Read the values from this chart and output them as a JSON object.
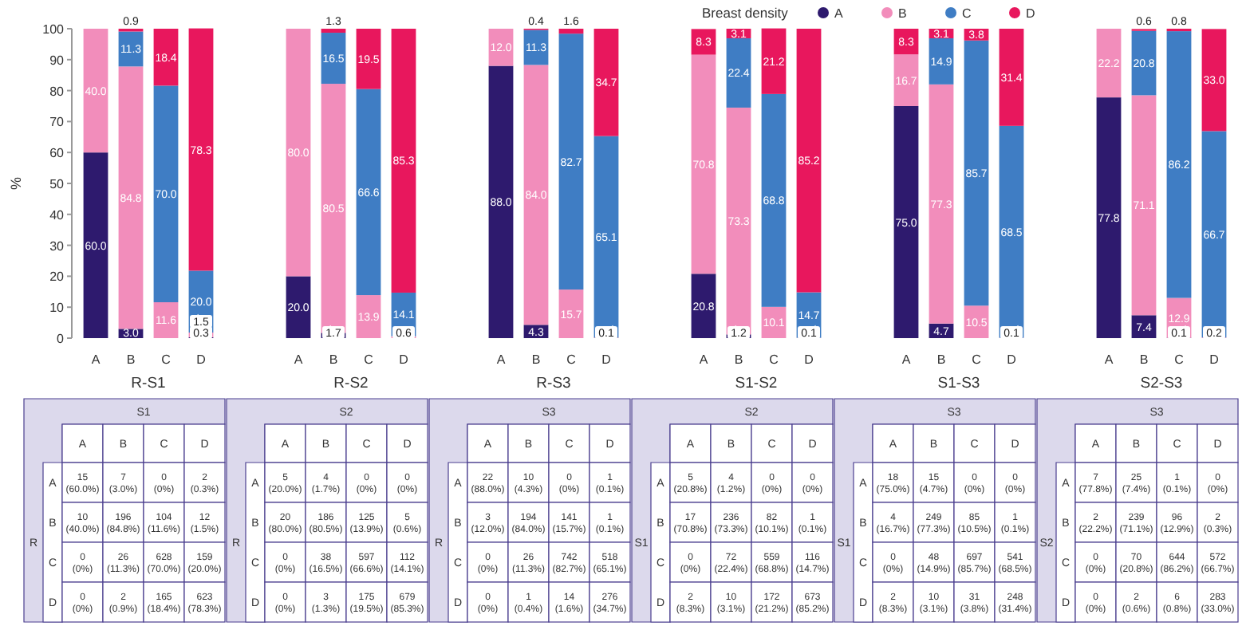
{
  "chart_data": [
    {
      "type": "bar",
      "stacked": true,
      "xlabel": "R-S1",
      "ylabel": "%",
      "legend": "top",
      "legend_title": "Breast density",
      "categories": [
        "A",
        "B",
        "C",
        "D"
      ],
      "ylim": [
        0,
        100
      ],
      "yticks": [
        0,
        10,
        20,
        30,
        40,
        50,
        60,
        70,
        80,
        90,
        100
      ],
      "series": [
        {
          "name": "A",
          "color": "#2e1a6e",
          "values": [
            60.0,
            3.0,
            0,
            0.3
          ],
          "value_labels": [
            "60.0",
            "3.0",
            null,
            "0.3"
          ]
        },
        {
          "name": "B",
          "color": "#f28dbb",
          "values": [
            40.0,
            84.8,
            11.6,
            1.5
          ],
          "value_labels": [
            "40.0",
            "84.8",
            "11.6",
            "1.5"
          ]
        },
        {
          "name": "C",
          "color": "#3f7dc4",
          "values": [
            0,
            11.3,
            70.0,
            20.0
          ],
          "value_labels": [
            null,
            "11.3",
            "70.0",
            "20.0"
          ]
        },
        {
          "name": "D",
          "color": "#e8175d",
          "values": [
            0,
            0.9,
            18.4,
            78.3
          ],
          "value_labels": [
            null,
            "0.9",
            "18.4",
            "78.3"
          ]
        }
      ]
    },
    {
      "type": "bar",
      "stacked": true,
      "xlabel": "R-S2",
      "tick_labels": "x",
      "categories": [
        "A",
        "B",
        "C",
        "D"
      ],
      "ylim": [
        0,
        100
      ],
      "series": [
        {
          "color": "#2e1a6e",
          "values": [
            20.0,
            1.7,
            0,
            0
          ],
          "value_labels": [
            "20.0",
            "1.7",
            null,
            null
          ]
        },
        {
          "color": "#f28dbb",
          "values": [
            80.0,
            80.5,
            13.9,
            0.6
          ],
          "value_labels": [
            "80.0",
            "80.5",
            "13.9",
            "0.6"
          ]
        },
        {
          "color": "#3f7dc4",
          "values": [
            0,
            16.5,
            66.6,
            14.1
          ],
          "value_labels": [
            null,
            "16.5",
            "66.6",
            "14.1"
          ]
        },
        {
          "color": "#e8175d",
          "values": [
            0,
            1.3,
            19.5,
            85.3
          ],
          "value_labels": [
            null,
            "1.3",
            "19.5",
            "85.3"
          ]
        }
      ]
    },
    {
      "type": "bar",
      "stacked": true,
      "xlabel": "R-S3",
      "tick_labels": "x",
      "categories": [
        "A",
        "B",
        "C",
        "D"
      ],
      "ylim": [
        0,
        100
      ],
      "series": [
        {
          "color": "#2e1a6e",
          "values": [
            88.0,
            4.3,
            0,
            0.1
          ],
          "value_labels": [
            "88.0",
            "4.3",
            null,
            "0.1"
          ]
        },
        {
          "color": "#f28dbb",
          "values": [
            12.0,
            84.0,
            15.7,
            0.1
          ],
          "value_labels": [
            "12.0",
            "84.0",
            "15.7",
            null
          ]
        },
        {
          "color": "#3f7dc4",
          "values": [
            0,
            11.3,
            82.7,
            65.1
          ],
          "value_labels": [
            null,
            "11.3",
            "82.7",
            "65.1"
          ]
        },
        {
          "color": "#e8175d",
          "values": [
            0,
            0.4,
            1.6,
            34.7
          ],
          "value_labels": [
            null,
            "0.4",
            "1.6",
            "34.7"
          ]
        }
      ]
    },
    {
      "type": "bar",
      "stacked": true,
      "xlabel": "S1-S2",
      "tick_labels": "x",
      "categories": [
        "A",
        "B",
        "C",
        "D"
      ],
      "ylim": [
        0,
        100
      ],
      "series": [
        {
          "color": "#2e1a6e",
          "values": [
            20.8,
            1.2,
            0,
            0
          ],
          "value_labels": [
            "20.8",
            "1.2",
            null,
            null
          ]
        },
        {
          "color": "#f28dbb",
          "values": [
            70.8,
            73.3,
            10.1,
            0.1
          ],
          "value_labels": [
            "70.8",
            "73.3",
            "10.1",
            "0.1"
          ]
        },
        {
          "color": "#3f7dc4",
          "values": [
            0,
            22.4,
            68.8,
            14.7
          ],
          "value_labels": [
            null,
            "22.4",
            "68.8",
            "14.7"
          ]
        },
        {
          "color": "#e8175d",
          "values": [
            8.3,
            3.1,
            21.2,
            85.2
          ],
          "value_labels": [
            "8.3",
            "3.1",
            "21.2",
            "85.2"
          ]
        }
      ]
    },
    {
      "type": "bar",
      "stacked": true,
      "xlabel": "S1-S3",
      "tick_labels": "x",
      "categories": [
        "A",
        "B",
        "C",
        "D"
      ],
      "ylim": [
        0,
        100
      ],
      "series": [
        {
          "color": "#2e1a6e",
          "values": [
            75.0,
            4.7,
            0,
            0
          ],
          "value_labels": [
            "75.0",
            "4.7",
            null,
            null
          ]
        },
        {
          "color": "#f28dbb",
          "values": [
            16.7,
            77.3,
            10.5,
            0.1
          ],
          "value_labels": [
            "16.7",
            "77.3",
            "10.5",
            "0.1"
          ]
        },
        {
          "color": "#3f7dc4",
          "values": [
            0,
            14.9,
            85.7,
            68.5
          ],
          "value_labels": [
            null,
            "14.9",
            "85.7",
            "68.5"
          ]
        },
        {
          "color": "#e8175d",
          "values": [
            8.3,
            3.1,
            3.8,
            31.4
          ],
          "value_labels": [
            "8.3",
            "3.1",
            "3.8",
            "31.4"
          ]
        }
      ]
    },
    {
      "type": "bar",
      "stacked": true,
      "xlabel": "S2-S3",
      "tick_labels": "x",
      "categories": [
        "A",
        "B",
        "C",
        "D"
      ],
      "ylim": [
        0,
        100
      ],
      "series": [
        {
          "color": "#2e1a6e",
          "values": [
            77.8,
            7.4,
            0.1,
            0
          ],
          "value_labels": [
            "77.8",
            "7.4",
            "0.1",
            null
          ]
        },
        {
          "color": "#f28dbb",
          "values": [
            22.2,
            71.1,
            12.9,
            0.2
          ],
          "value_labels": [
            "22.2",
            "71.1",
            "12.9",
            "0.2"
          ]
        },
        {
          "color": "#3f7dc4",
          "values": [
            0,
            20.8,
            86.2,
            66.7
          ],
          "value_labels": [
            null,
            "20.8",
            "86.2",
            "66.7"
          ]
        },
        {
          "color": "#e8175d",
          "values": [
            0,
            0.6,
            0.8,
            33.0
          ],
          "value_labels": [
            null,
            "0.6",
            "0.8",
            "33.0"
          ]
        }
      ]
    },
    {
      "type": "other",
      "xlabel": "S1",
      "ylabel": "R",
      "categories": [
        "A",
        "B",
        "C",
        "D"
      ],
      "y_categories": [
        "A",
        "B",
        "C",
        "D"
      ],
      "annotations": [
        "15 (60.0%)",
        "7 (3.0%)",
        "0 (0%)",
        "2 (0.3%)",
        "10 (40.0%)",
        "196 (84.8%)",
        "104 (11.6%)",
        "12 (1.5%)",
        "0 (0%)",
        "26 (11.3%)",
        "628 (70.0%)",
        "159 (20.0%)",
        "0 (0%)",
        "2 (0.9%)",
        "165 (18.4%)",
        "623 (78.3%)"
      ]
    },
    {
      "type": "other",
      "xlabel": "S2",
      "ylabel": "R",
      "categories": [
        "A",
        "B",
        "C",
        "D"
      ],
      "y_categories": [
        "A",
        "B",
        "C",
        "D"
      ],
      "annotations": [
        "5 (20.0%)",
        "4 (1.7%)",
        "0 (0%)",
        "0 (0%)",
        "20 (80.0%)",
        "186 (80.5%)",
        "125 (13.9%)",
        "5 (0.6%)",
        "0 (0%)",
        "38 (16.5%)",
        "597 (66.6%)",
        "112 (14.1%)",
        "0 (0%)",
        "3 (1.3%)",
        "175 (19.5%)",
        "679 (85.3%)"
      ]
    },
    {
      "type": "other",
      "xlabel": "S3",
      "ylabel": "R",
      "categories": [
        "A",
        "B",
        "C",
        "D"
      ],
      "y_categories": [
        "A",
        "B",
        "C",
        "D"
      ],
      "annotations": [
        "22 (88.0%)",
        "10 (4.3%)",
        "0 (0%)",
        "1 (0.1%)",
        "3 (12.0%)",
        "194 (84.0%)",
        "141 (15.7%)",
        "1 (0.1%)",
        "0 (0%)",
        "26 (11.3%)",
        "742 (82.7%)",
        "518 (65.1%)",
        "0 (0%)",
        "1 (0.4%)",
        "14 (1.6%)",
        "276 (34.7%)"
      ]
    },
    {
      "type": "other",
      "xlabel": "S2",
      "ylabel": "S1",
      "categories": [
        "A",
        "B",
        "C",
        "D"
      ],
      "y_categories": [
        "A",
        "B",
        "C",
        "D"
      ],
      "annotations": [
        "5 (20.8%)",
        "4 (1.2%)",
        "0 (0%)",
        "0 (0%)",
        "17 (70.8%)",
        "236 (73.3%)",
        "82 (10.1%)",
        "1 (0.1%)",
        "0 (0%)",
        "72 (22.4%)",
        "559 (68.8%)",
        "116 (14.7%)",
        "2 (8.3%)",
        "10 (3.1%)",
        "172 (21.2%)",
        "673 (85.2%)"
      ]
    },
    {
      "type": "other",
      "xlabel": "S3",
      "ylabel": "S1",
      "categories": [
        "A",
        "B",
        "C",
        "D"
      ],
      "y_categories": [
        "A",
        "B",
        "C",
        "D"
      ],
      "annotations": [
        "18 (75.0%)",
        "15 (4.7%)",
        "0 (0%)",
        "0 (0%)",
        "4 (16.7%)",
        "249 (77.3%)",
        "85 (10.5%)",
        "1 (0.1%)",
        "0 (0%)",
        "48 (14.9%)",
        "697 (85.7%)",
        "541 (68.5%)",
        "2 (8.3%)",
        "10 (3.1%)",
        "31 (3.8%)",
        "248 (31.4%)"
      ]
    },
    {
      "type": "other",
      "xlabel": "S3",
      "ylabel": "S2",
      "categories": [
        "A",
        "B",
        "C",
        "D"
      ],
      "y_categories": [
        "A",
        "B",
        "C",
        "D"
      ],
      "annotations": [
        "7 (77.8%)",
        "25 (7.4%)",
        "1 (0.1%)",
        "0 (0%)",
        "2 (22.2%)",
        "239 (71.1%)",
        "96 (12.9%)",
        "2 (0.3%)",
        "0 (0%)",
        "70 (20.8%)",
        "644 (86.2%)",
        "572 (66.7%)",
        "0 (0%)",
        "2 (0.6%)",
        "6 (0.8%)",
        "283 (33.0%)"
      ]
    }
  ]
}
